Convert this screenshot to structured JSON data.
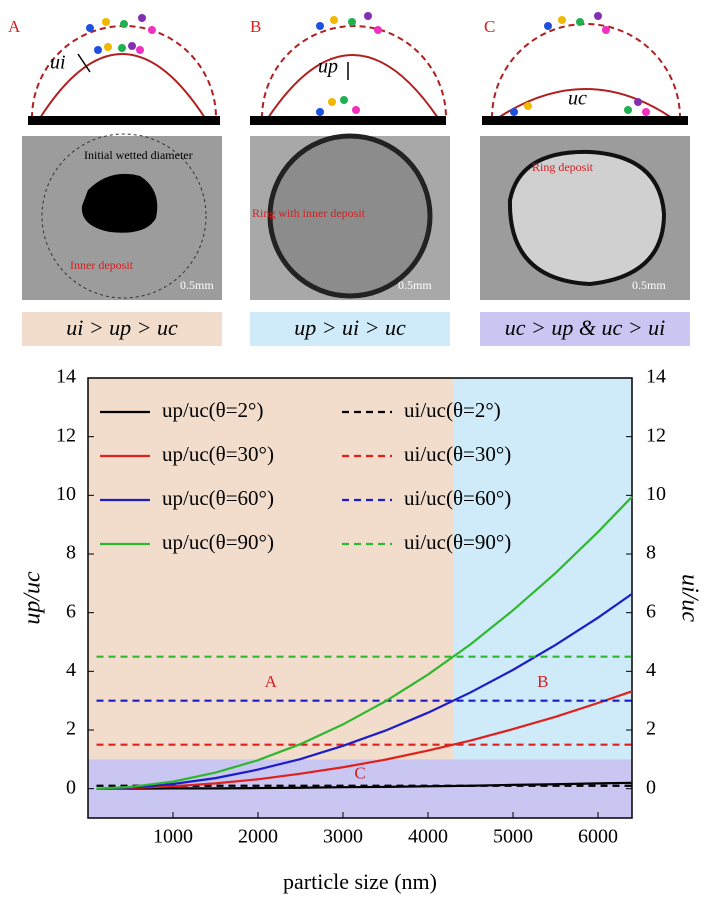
{
  "panels": [
    {
      "letter": "A",
      "velocity": "ui",
      "texts": [
        "Initial wetted diameter",
        "Inner deposit"
      ],
      "scale": "0.5mm",
      "condition": "ui > up > uc"
    },
    {
      "letter": "B",
      "velocity": "up",
      "texts": [
        "Ring with inner deposit"
      ],
      "scale": "0.5mm",
      "condition": "up > ui > uc"
    },
    {
      "letter": "C",
      "velocity": "uc",
      "texts": [
        "Ring deposit"
      ],
      "scale": "0.5mm",
      "condition": "uc > up & uc > ui"
    }
  ],
  "chart_data": {
    "type": "line",
    "x_label": "particle size (nm)",
    "y_label": "up/uc",
    "y2_label": "ui/uc",
    "x": [
      100,
      500,
      1000,
      1500,
      2000,
      2500,
      3000,
      3500,
      4000,
      4500,
      5000,
      5500,
      6000,
      6400
    ],
    "xlim": [
      0,
      6400
    ],
    "xticks": [
      1000,
      2000,
      3000,
      4000,
      5000,
      6000
    ],
    "ylim": [
      -1,
      14
    ],
    "yticks": [
      0,
      2,
      4,
      6,
      8,
      10,
      12,
      14
    ],
    "y2lim": [
      -1,
      14
    ],
    "y2ticks": [
      0,
      2,
      4,
      6,
      8,
      10,
      12,
      14
    ],
    "regions": [
      {
        "label": "A",
        "color": "#f2ddcc",
        "xlim": [
          0,
          4300
        ],
        "ylim": [
          1,
          14
        ]
      },
      {
        "label": "B",
        "color": "#cfeaf8",
        "xlim": [
          4300,
          6400
        ],
        "ylim": [
          1,
          14
        ]
      },
      {
        "label": "C",
        "color": "#c9c6f2",
        "xlim": [
          0,
          6400
        ],
        "ylim": [
          -1,
          1
        ]
      }
    ],
    "series": [
      {
        "name": "up/uc(θ=2°)",
        "color": "#000000",
        "dashed": false,
        "values": [
          0,
          0,
          0.01,
          0.01,
          0.02,
          0.03,
          0.05,
          0.06,
          0.08,
          0.1,
          0.13,
          0.15,
          0.18,
          0.2
        ]
      },
      {
        "name": "ui/uc(θ=2°)",
        "color": "#000000",
        "dashed": true,
        "axis": "y2",
        "values": [
          0.1,
          0.1,
          0.1,
          0.1,
          0.1,
          0.1,
          0.1,
          0.1,
          0.1,
          0.1,
          0.1,
          0.1,
          0.1,
          0.1
        ]
      },
      {
        "name": "up/uc(θ=30°)",
        "color": "#e0201c",
        "dashed": false,
        "values": [
          0,
          0.02,
          0.08,
          0.18,
          0.32,
          0.51,
          0.73,
          0.99,
          1.3,
          1.64,
          2.03,
          2.45,
          2.92,
          3.32
        ]
      },
      {
        "name": "ui/uc(θ=30°)",
        "color": "#e0201c",
        "dashed": true,
        "axis": "y2",
        "values": [
          1.5,
          1.5,
          1.5,
          1.5,
          1.5,
          1.5,
          1.5,
          1.5,
          1.5,
          1.5,
          1.5,
          1.5,
          1.5,
          1.5
        ]
      },
      {
        "name": "up/uc(θ=60°)",
        "color": "#1c1cc8",
        "dashed": false,
        "values": [
          0,
          0.04,
          0.16,
          0.36,
          0.65,
          1.01,
          1.46,
          1.98,
          2.59,
          3.28,
          4.05,
          4.9,
          5.83,
          6.64
        ]
      },
      {
        "name": "ui/uc(θ=60°)",
        "color": "#1c1cc8",
        "dashed": true,
        "axis": "y2",
        "values": [
          3,
          3,
          3,
          3,
          3,
          3,
          3,
          3,
          3,
          3,
          3,
          3,
          3,
          3
        ]
      },
      {
        "name": "up/uc(θ=90°)",
        "color": "#2eb82e",
        "dashed": false,
        "values": [
          0,
          0.06,
          0.24,
          0.55,
          0.97,
          1.52,
          2.19,
          2.98,
          3.89,
          4.92,
          6.08,
          7.35,
          8.75,
          9.95
        ]
      },
      {
        "name": "ui/uc(θ=90°)",
        "color": "#2eb82e",
        "dashed": true,
        "axis": "y2",
        "values": [
          4.5,
          4.5,
          4.5,
          4.5,
          4.5,
          4.5,
          4.5,
          4.5,
          4.5,
          4.5,
          4.5,
          4.5,
          4.5,
          4.5
        ]
      }
    ]
  }
}
